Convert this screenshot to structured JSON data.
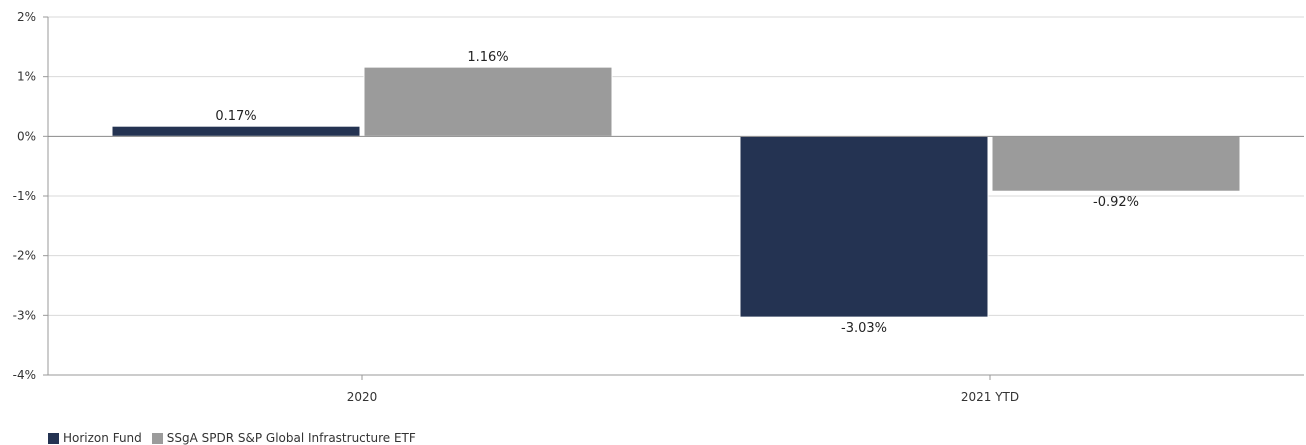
{
  "chart_data": {
    "type": "bar",
    "categories": [
      "2020",
      "2021 YTD"
    ],
    "series": [
      {
        "name": "Horizon Fund",
        "values": [
          0.17,
          -3.03
        ],
        "labels": [
          "0.17%",
          "-3.03%"
        ],
        "color": "#243352"
      },
      {
        "name": "SSgA SPDR S&P Global Infrastructure ETF",
        "values": [
          1.16,
          -0.92
        ],
        "labels": [
          "1.16%",
          "-0.92%"
        ],
        "color": "#9b9b9b"
      }
    ],
    "ylim": [
      -4,
      2
    ],
    "yticks": [
      2,
      1,
      0,
      -1,
      -2,
      -3,
      -4
    ],
    "ytick_labels": [
      "2%",
      "1%",
      "0%",
      "-1%",
      "-2%",
      "-3%",
      "-4%"
    ],
    "grid": true,
    "legend_position": "bottom-left",
    "title": "",
    "xlabel": "",
    "ylabel": ""
  }
}
